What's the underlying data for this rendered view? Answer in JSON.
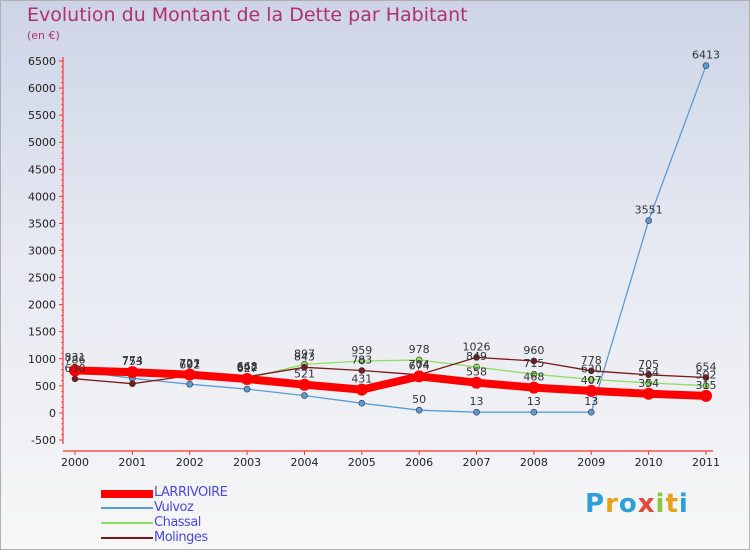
{
  "header": {
    "title": "Evolution du Montant de la Dette par Habitant",
    "unit": "(en €)"
  },
  "logo": {
    "text": "Proxiti",
    "letters": [
      "P",
      "r",
      "o",
      "x",
      "i",
      "t",
      "i"
    ],
    "colors": [
      "#2d9fd9",
      "#e8a21e",
      "#2d9fd9",
      "#e34a3a",
      "#8cc63f",
      "#e8a21e",
      "#2d9fd9"
    ]
  },
  "chart_data": {
    "type": "line",
    "title": "Evolution du Montant de la Dette par Habitant",
    "ylabel": "(en €)",
    "xlabel": "",
    "x": [
      "2000",
      "2001",
      "2002",
      "2003",
      "2004",
      "2005",
      "2006",
      "2007",
      "2008",
      "2009",
      "2010",
      "2011"
    ],
    "ylim": [
      -500,
      6500
    ],
    "yticks": [
      -500,
      0,
      500,
      1000,
      1500,
      2000,
      2500,
      3000,
      3500,
      4000,
      4500,
      5000,
      5500,
      6000,
      6500
    ],
    "grid": false,
    "legend_position": "bottom-left",
    "series": [
      {
        "name": "LARRIVOIRE",
        "color": "#ff0000",
        "values": [
          786,
          753,
          707,
          627,
          521,
          431,
          674,
          558,
          468,
          407,
          354,
          315
        ]
      },
      {
        "name": "Vulvoz",
        "color": "#5b9bd5",
        "values": [
          780,
          640,
          530,
          440,
          320,
          180,
          50,
          13,
          13,
          13,
          3551,
          6413
        ]
      },
      {
        "name": "Chassal",
        "color": "#8ee05e",
        "values": [
          831,
          774,
          721,
          642,
          897,
          959,
          978,
          849,
          715,
          620,
          554,
          502
        ]
      },
      {
        "name": "Molinges",
        "color": "#7a1a1a",
        "values": [
          630,
          540,
          692,
          668,
          843,
          783,
          704,
          1026,
          960,
          778,
          705,
          654
        ]
      }
    ],
    "labels": [
      {
        "s": 0,
        "i": 0,
        "t": "786"
      },
      {
        "s": 0,
        "i": 1,
        "t": "753"
      },
      {
        "s": 0,
        "i": 2,
        "t": "707"
      },
      {
        "s": 0,
        "i": 3,
        "t": "627"
      },
      {
        "s": 0,
        "i": 4,
        "t": "521"
      },
      {
        "s": 0,
        "i": 5,
        "t": "431"
      },
      {
        "s": 0,
        "i": 6,
        "t": "674"
      },
      {
        "s": 0,
        "i": 7,
        "t": "558"
      },
      {
        "s": 0,
        "i": 8,
        "t": "468"
      },
      {
        "s": 0,
        "i": 9,
        "t": "407"
      },
      {
        "s": 0,
        "i": 10,
        "t": "354"
      },
      {
        "s": 0,
        "i": 11,
        "t": "315"
      },
      {
        "s": 1,
        "i": 6,
        "t": "50"
      },
      {
        "s": 1,
        "i": 7,
        "t": "13"
      },
      {
        "s": 1,
        "i": 8,
        "t": "13"
      },
      {
        "s": 1,
        "i": 9,
        "t": "13"
      },
      {
        "s": 1,
        "i": 10,
        "t": "3551"
      },
      {
        "s": 1,
        "i": 11,
        "t": "6413"
      },
      {
        "s": 2,
        "i": 0,
        "t": "831"
      },
      {
        "s": 2,
        "i": 1,
        "t": "774"
      },
      {
        "s": 2,
        "i": 2,
        "t": "721"
      },
      {
        "s": 2,
        "i": 3,
        "t": "642"
      },
      {
        "s": 2,
        "i": 4,
        "t": "897"
      },
      {
        "s": 2,
        "i": 5,
        "t": "959"
      },
      {
        "s": 2,
        "i": 6,
        "t": "978"
      },
      {
        "s": 2,
        "i": 7,
        "t": "849"
      },
      {
        "s": 2,
        "i": 8,
        "t": "715"
      },
      {
        "s": 2,
        "i": 9,
        "t": "620"
      },
      {
        "s": 2,
        "i": 10,
        "t": "554"
      },
      {
        "s": 2,
        "i": 11,
        "t": "502"
      },
      {
        "s": 3,
        "i": 0,
        "t": "630"
      },
      {
        "s": 3,
        "i": 2,
        "t": "692"
      },
      {
        "s": 3,
        "i": 3,
        "t": "668"
      },
      {
        "s": 3,
        "i": 4,
        "t": "843"
      },
      {
        "s": 3,
        "i": 5,
        "t": "783"
      },
      {
        "s": 3,
        "i": 6,
        "t": "704"
      },
      {
        "s": 3,
        "i": 7,
        "t": "1026"
      },
      {
        "s": 3,
        "i": 8,
        "t": "960"
      },
      {
        "s": 3,
        "i": 9,
        "t": "778"
      },
      {
        "s": 3,
        "i": 10,
        "t": "705"
      },
      {
        "s": 3,
        "i": 11,
        "t": "654"
      }
    ]
  }
}
